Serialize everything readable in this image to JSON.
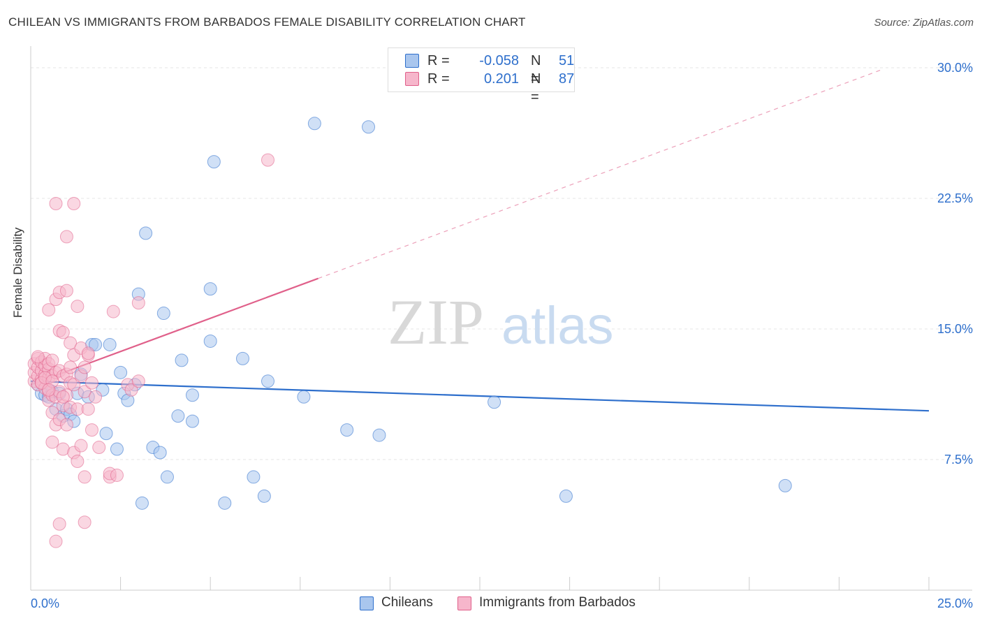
{
  "title": "CHILEAN VS IMMIGRANTS FROM BARBADOS FEMALE DISABILITY CORRELATION CHART",
  "source": "Source: ZipAtlas.com",
  "watermark": {
    "zip": "ZIP",
    "atlas": "atlas"
  },
  "colors": {
    "blue": "#2e6fcc",
    "blue_fill": "#a9c6ee",
    "pink": "#e0608a",
    "pink_fill": "#f6b6cb",
    "grid": "#e4e4e4",
    "axis_text": "#2e6fcc"
  },
  "stats": [
    {
      "r_label": "R =",
      "r_value": "-0.058",
      "n_label": "N =",
      "n_value": "51",
      "color": "#a9c6ee",
      "border": "#2e6fcc"
    },
    {
      "r_label": "R =",
      "r_value": "0.201",
      "n_label": "N =",
      "n_value": "87",
      "color": "#f6b6cb",
      "border": "#e0608a"
    }
  ],
  "legend": [
    {
      "label": "Chileans",
      "color": "#a9c6ee",
      "border": "#2e6fcc"
    },
    {
      "label": "Immigrants from Barbados",
      "color": "#f6b6cb",
      "border": "#e0608a"
    }
  ],
  "chart_data": {
    "type": "scatter",
    "title": "CHILEAN VS IMMIGRANTS FROM BARBADOS FEMALE DISABILITY CORRELATION CHART",
    "xlabel": "",
    "ylabel": "Female Disability",
    "xlim": [
      0,
      25
    ],
    "ylim": [
      0,
      30.5
    ],
    "x_tick_labels": [
      "0.0%",
      "25.0%"
    ],
    "y_ticks": [
      7.5,
      15.0,
      22.5,
      30.0
    ],
    "y_tick_labels": [
      "7.5%",
      "15.0%",
      "22.5%",
      "30.0%"
    ],
    "grid": true,
    "series": [
      {
        "name": "Chileans",
        "color": "#2e6fcc",
        "fill": "#a9c6ee",
        "trend": {
          "x": [
            0,
            25
          ],
          "y": [
            12.0,
            10.3
          ],
          "dashed_extension": false
        },
        "points": [
          [
            0.2,
            11.8
          ],
          [
            0.3,
            11.3
          ],
          [
            0.4,
            11.2
          ],
          [
            0.5,
            11.1
          ],
          [
            0.6,
            11.4
          ],
          [
            0.7,
            10.4
          ],
          [
            0.8,
            11.3
          ],
          [
            0.9,
            10.0
          ],
          [
            1.0,
            10.4
          ],
          [
            1.1,
            10.1
          ],
          [
            1.2,
            9.7
          ],
          [
            1.3,
            11.3
          ],
          [
            1.4,
            12.4
          ],
          [
            1.6,
            11.1
          ],
          [
            1.7,
            14.1
          ],
          [
            1.8,
            14.1
          ],
          [
            2.0,
            11.5
          ],
          [
            2.1,
            9.0
          ],
          [
            2.2,
            14.1
          ],
          [
            2.4,
            8.1
          ],
          [
            2.5,
            12.5
          ],
          [
            2.6,
            11.3
          ],
          [
            2.7,
            10.9
          ],
          [
            2.9,
            11.8
          ],
          [
            3.0,
            17.0
          ],
          [
            3.1,
            5.0
          ],
          [
            3.2,
            20.5
          ],
          [
            3.4,
            8.2
          ],
          [
            3.6,
            7.9
          ],
          [
            3.7,
            15.9
          ],
          [
            3.8,
            6.5
          ],
          [
            4.1,
            10.0
          ],
          [
            4.2,
            13.2
          ],
          [
            4.5,
            9.7
          ],
          [
            4.5,
            11.2
          ],
          [
            5.0,
            17.3
          ],
          [
            5.0,
            14.3
          ],
          [
            5.1,
            24.6
          ],
          [
            5.4,
            5.0
          ],
          [
            5.9,
            13.3
          ],
          [
            6.2,
            6.5
          ],
          [
            6.5,
            5.4
          ],
          [
            6.6,
            12.0
          ],
          [
            7.6,
            11.1
          ],
          [
            7.9,
            26.8
          ],
          [
            8.8,
            9.2
          ],
          [
            9.4,
            26.6
          ],
          [
            9.7,
            8.9
          ],
          [
            12.9,
            10.8
          ],
          [
            14.9,
            5.4
          ],
          [
            21.0,
            6.0
          ]
        ]
      },
      {
        "name": "Immigrants from Barbados",
        "color": "#e0608a",
        "fill": "#f6b6cb",
        "trend": {
          "x": [
            0,
            8
          ],
          "y": [
            11.8,
            17.9
          ],
          "extension_x": [
            8,
            23.7
          ],
          "extension_y": [
            17.9,
            29.9
          ]
        },
        "points": [
          [
            0.1,
            12.0
          ],
          [
            0.1,
            12.5
          ],
          [
            0.1,
            13.0
          ],
          [
            0.2,
            11.8
          ],
          [
            0.2,
            12.3
          ],
          [
            0.2,
            12.8
          ],
          [
            0.2,
            13.3
          ],
          [
            0.3,
            12.1
          ],
          [
            0.3,
            12.6
          ],
          [
            0.3,
            13.1
          ],
          [
            0.3,
            11.9
          ],
          [
            0.4,
            12.4
          ],
          [
            0.4,
            12.9
          ],
          [
            0.4,
            13.3
          ],
          [
            0.4,
            11.6
          ],
          [
            0.5,
            12.2
          ],
          [
            0.5,
            12.7
          ],
          [
            0.5,
            13.0
          ],
          [
            0.5,
            11.4
          ],
          [
            0.5,
            10.9
          ],
          [
            0.5,
            16.1
          ],
          [
            0.6,
            12.3
          ],
          [
            0.6,
            11.2
          ],
          [
            0.6,
            10.2
          ],
          [
            0.6,
            8.5
          ],
          [
            0.6,
            13.2
          ],
          [
            0.7,
            16.7
          ],
          [
            0.7,
            12.5
          ],
          [
            0.7,
            9.5
          ],
          [
            0.7,
            11.1
          ],
          [
            0.7,
            2.8
          ],
          [
            0.7,
            22.2
          ],
          [
            0.8,
            17.1
          ],
          [
            0.8,
            14.9
          ],
          [
            0.8,
            12.6
          ],
          [
            0.8,
            11.4
          ],
          [
            0.8,
            9.8
          ],
          [
            0.8,
            3.8
          ],
          [
            0.9,
            14.8
          ],
          [
            0.9,
            12.3
          ],
          [
            0.9,
            10.6
          ],
          [
            0.9,
            8.1
          ],
          [
            1.0,
            17.2
          ],
          [
            1.0,
            12.4
          ],
          [
            1.0,
            11.2
          ],
          [
            1.0,
            9.5
          ],
          [
            1.0,
            20.3
          ],
          [
            1.1,
            14.2
          ],
          [
            1.1,
            11.9
          ],
          [
            1.1,
            10.5
          ],
          [
            1.2,
            13.5
          ],
          [
            1.2,
            11.8
          ],
          [
            1.2,
            7.9
          ],
          [
            1.2,
            22.2
          ],
          [
            1.3,
            16.3
          ],
          [
            1.3,
            10.4
          ],
          [
            1.3,
            7.4
          ],
          [
            1.4,
            13.9
          ],
          [
            1.4,
            12.3
          ],
          [
            1.4,
            8.3
          ],
          [
            1.5,
            11.4
          ],
          [
            1.5,
            12.8
          ],
          [
            1.5,
            6.5
          ],
          [
            1.5,
            3.9
          ],
          [
            1.6,
            13.5
          ],
          [
            1.6,
            13.6
          ],
          [
            1.6,
            10.4
          ],
          [
            1.7,
            11.9
          ],
          [
            1.7,
            9.2
          ],
          [
            1.8,
            11.1
          ],
          [
            1.9,
            8.2
          ],
          [
            2.2,
            6.5
          ],
          [
            2.2,
            6.7
          ],
          [
            2.3,
            16.0
          ],
          [
            2.7,
            11.8
          ],
          [
            2.8,
            11.5
          ],
          [
            3.0,
            16.5
          ],
          [
            3.0,
            12.0
          ],
          [
            6.6,
            24.7
          ],
          [
            0.2,
            13.4
          ],
          [
            0.3,
            11.9
          ],
          [
            0.4,
            12.2
          ],
          [
            0.9,
            11.1
          ],
          [
            1.1,
            12.8
          ],
          [
            0.6,
            12.0
          ],
          [
            0.5,
            11.5
          ],
          [
            2.4,
            6.6
          ]
        ]
      }
    ]
  }
}
